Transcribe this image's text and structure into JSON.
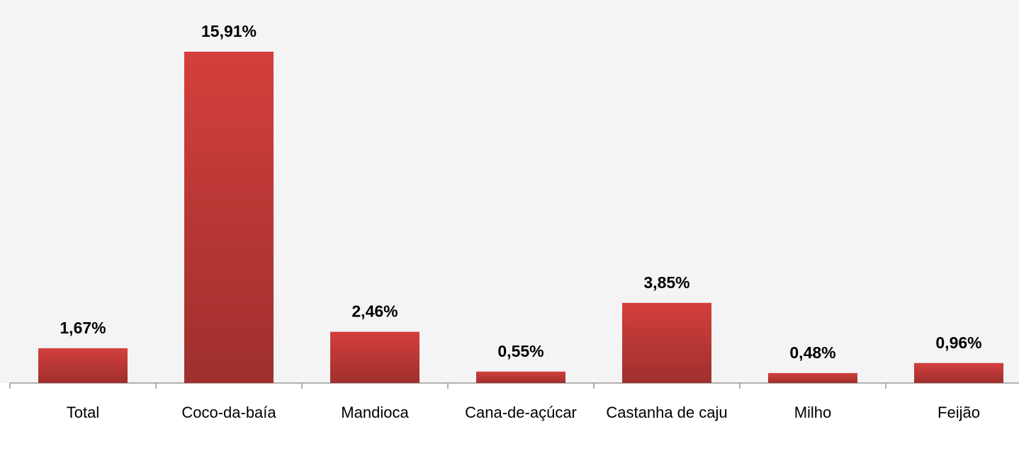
{
  "chart_data": {
    "type": "bar",
    "categories": [
      "Total",
      "Coco-da-baía",
      "Mandioca",
      "Cana-de-açúcar",
      "Castanha de caju",
      "Milho",
      "Feijão"
    ],
    "values": [
      1.67,
      15.91,
      2.46,
      0.55,
      3.85,
      0.48,
      0.96
    ],
    "value_labels": [
      "1,67%",
      "15,91%",
      "2,46%",
      "0,55%",
      "3,85%",
      "0,48%",
      "0,96%"
    ],
    "color": "#d33f3c"
  }
}
